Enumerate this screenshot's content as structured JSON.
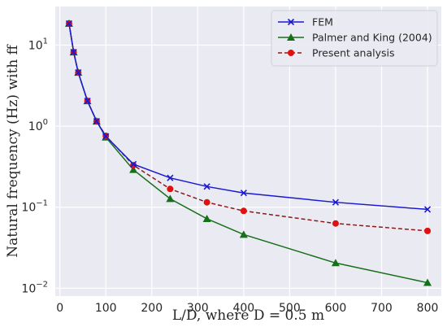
{
  "chart_data": {
    "type": "line",
    "xlabel": "L/D, where D = 0.5 m",
    "ylabel": "Natural frequency (Hz) with ff",
    "xlim": [
      -10,
      830
    ],
    "ylim": [
      0.008,
      30
    ],
    "yscale": "log",
    "grid": true,
    "legend_position": "top-right",
    "x_ticks": [
      {
        "value": 0,
        "label": "0"
      },
      {
        "value": 100,
        "label": "100"
      },
      {
        "value": 200,
        "label": "200"
      },
      {
        "value": 300,
        "label": "300"
      },
      {
        "value": 400,
        "label": "400"
      },
      {
        "value": 500,
        "label": "500"
      },
      {
        "value": 600,
        "label": "600"
      },
      {
        "value": 700,
        "label": "700"
      },
      {
        "value": 800,
        "label": "800"
      }
    ],
    "y_ticks": [
      {
        "value": 0.01,
        "base": "10",
        "exp": "−2"
      },
      {
        "value": 0.1,
        "base": "10",
        "exp": "−1"
      },
      {
        "value": 1,
        "base": "10",
        "exp": "0"
      },
      {
        "value": 10,
        "base": "10",
        "exp": "1"
      }
    ],
    "series": [
      {
        "name": "FEM",
        "color": "#1a1ad2",
        "marker": "x",
        "line_style": "solid",
        "x": [
          20,
          30,
          40,
          60,
          80,
          100,
          160,
          240,
          320,
          400,
          600,
          800
        ],
        "y": [
          18.5,
          8.2,
          4.6,
          2.05,
          1.15,
          0.75,
          0.34,
          0.23,
          0.18,
          0.15,
          0.115,
          0.094
        ]
      },
      {
        "name": "Palmer and King (2004)",
        "color": "#16701a",
        "marker": "triangle",
        "line_style": "solid",
        "x": [
          20,
          30,
          40,
          60,
          80,
          100,
          160,
          240,
          320,
          400,
          600,
          800
        ],
        "y": [
          18.5,
          8.2,
          4.6,
          2.05,
          1.15,
          0.73,
          0.29,
          0.127,
          0.072,
          0.046,
          0.0205,
          0.0117
        ]
      },
      {
        "name": "Present analysis",
        "color": "#8b1a1a",
        "marker": "circle",
        "marker_color": "#e01010",
        "line_style": "dashed",
        "x": [
          20,
          30,
          40,
          60,
          80,
          100,
          160,
          240,
          320,
          400,
          600,
          800
        ],
        "y": [
          18.5,
          8.2,
          4.6,
          2.05,
          1.15,
          0.76,
          0.33,
          0.168,
          0.115,
          0.09,
          0.063,
          0.051
        ]
      }
    ],
    "colors": {
      "plot_background": "#eaeaf2",
      "grid": "#ffffff"
    }
  }
}
